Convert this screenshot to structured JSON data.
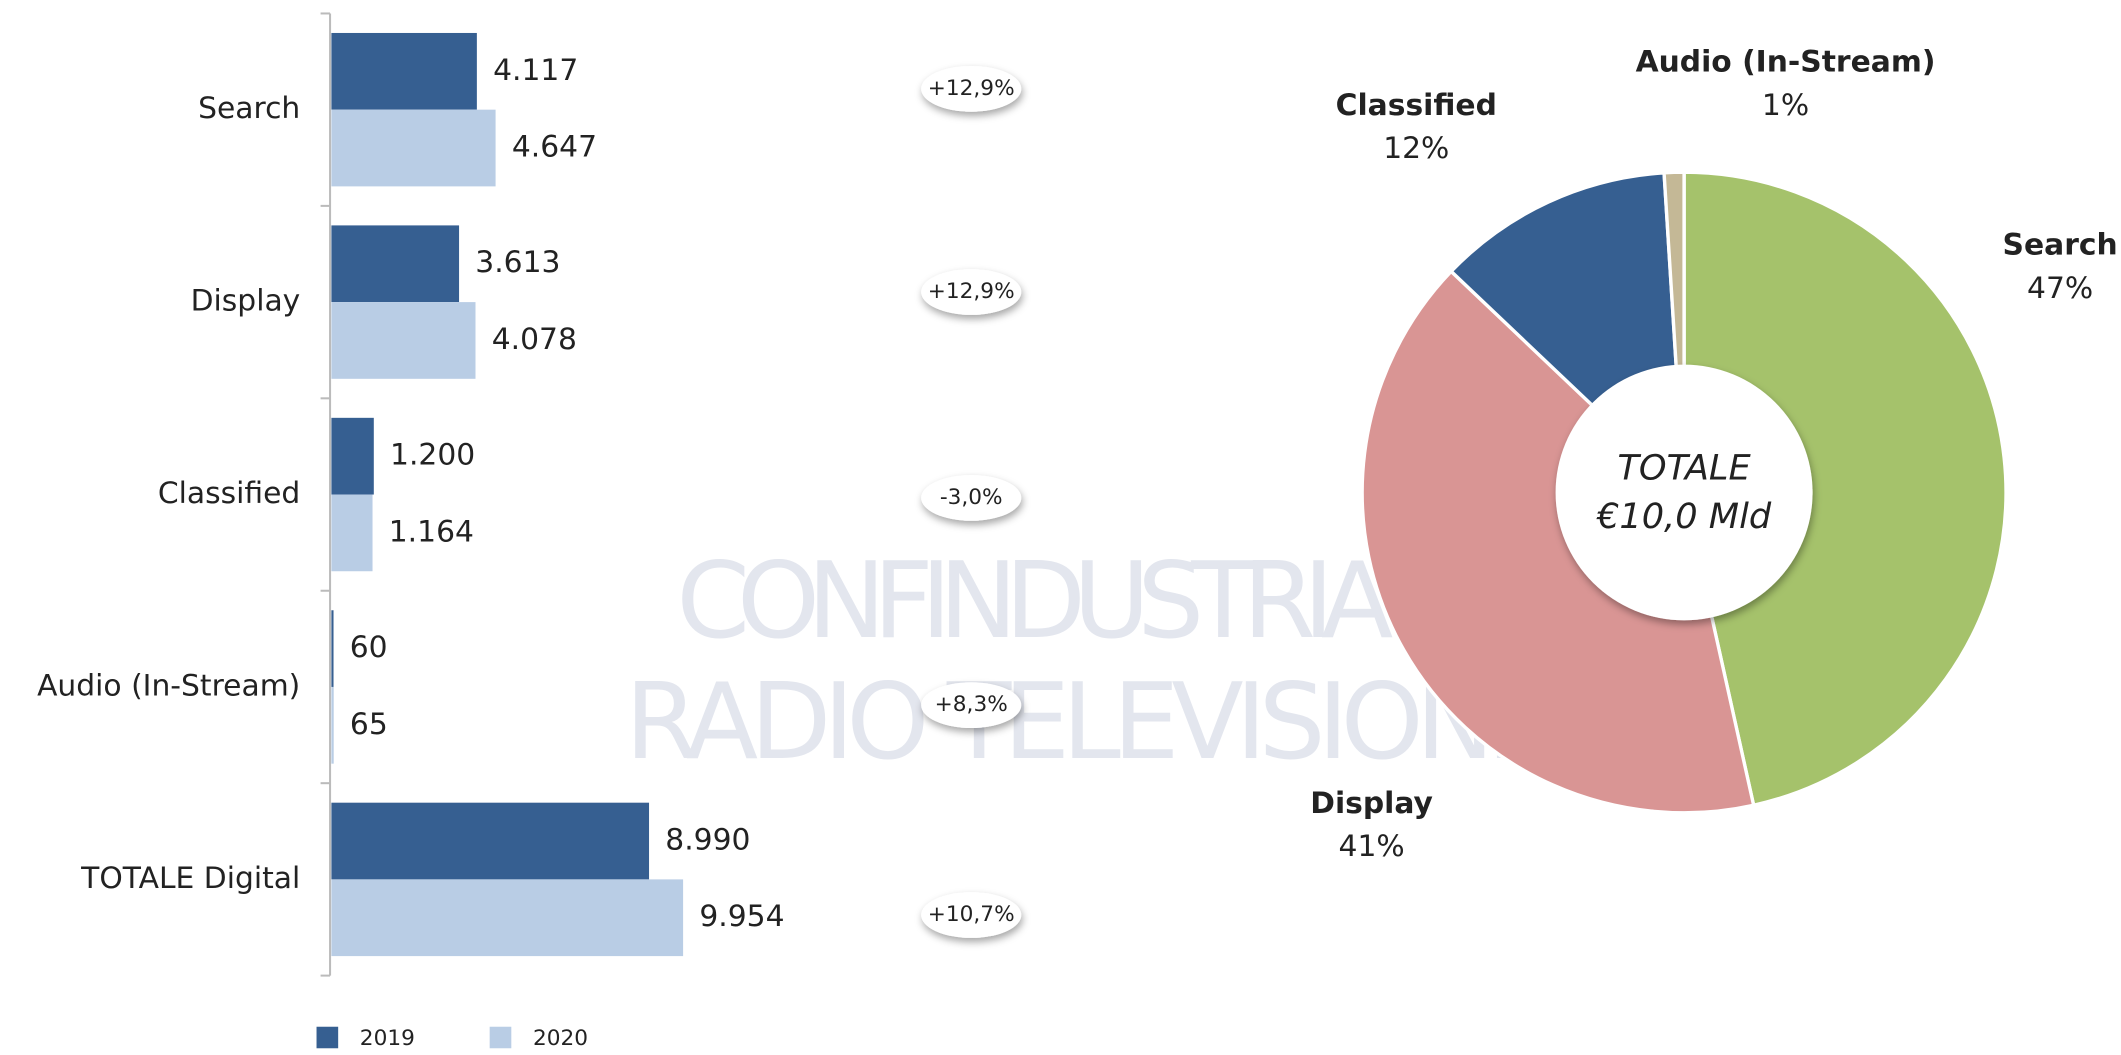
{
  "watermark": [
    "CONFINDUSTRIA",
    "RADIO TELEVISIONI"
  ],
  "chart_data": [
    {
      "type": "hbar",
      "categories": [
        "Search",
        "Display",
        "Classified",
        "Audio (In-Stream)",
        "TOTALE Digital"
      ],
      "series": [
        {
          "name": "2019",
          "color": "#365f91",
          "values": [
            4117,
            3613,
            1200,
            60,
            8990
          ],
          "value_labels": [
            "4.117",
            "3.613",
            "1.200",
            "60",
            "8.990"
          ]
        },
        {
          "name": "2020",
          "color": "#b9cde5",
          "values": [
            4647,
            4078,
            1164,
            65,
            9954
          ],
          "value_labels": [
            "4.647",
            "4.078",
            "1.164",
            "65",
            "9.954"
          ]
        }
      ],
      "annotations": [
        "+12,9%",
        "+12,9%",
        "-3,0%",
        "+8,3%",
        "+10,7%"
      ],
      "legend": "bottom"
    },
    {
      "type": "donut",
      "categories": [
        "Search",
        "Display",
        "Classified",
        "Audio (In-Stream)"
      ],
      "values": [
        47,
        41,
        12,
        1
      ],
      "value_labels": [
        "47%",
        "41%",
        "12%",
        "1%"
      ],
      "colors": [
        "#a5c26b",
        "#d99594",
        "#365f91",
        "#c4b896"
      ],
      "center_text": [
        "TOTALE",
        "€10,0 Mld"
      ]
    }
  ]
}
